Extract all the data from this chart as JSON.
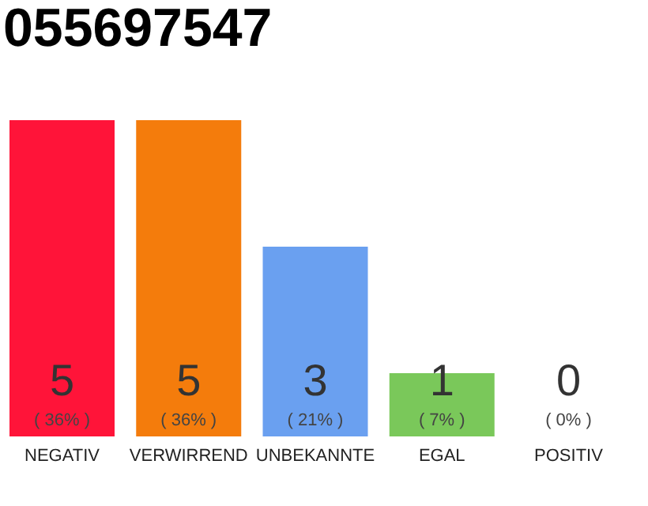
{
  "chart_data": {
    "type": "bar",
    "title": "055697547",
    "categories": [
      "NEGATIV",
      "VERWIRREND",
      "UNBEKANNTE",
      "EGAL",
      "POSITIV"
    ],
    "values": [
      5,
      5,
      3,
      1,
      0
    ],
    "colors": [
      "#ff1439",
      "#f47c0c",
      "#6aa0f0",
      "#7ac85a",
      "#d0d0d0"
    ],
    "data_labels": true,
    "annotations": [
      "( 36% )",
      "( 36% )",
      "( 21% )",
      "( 7% )",
      "( 0% )"
    ],
    "grid": false
  }
}
